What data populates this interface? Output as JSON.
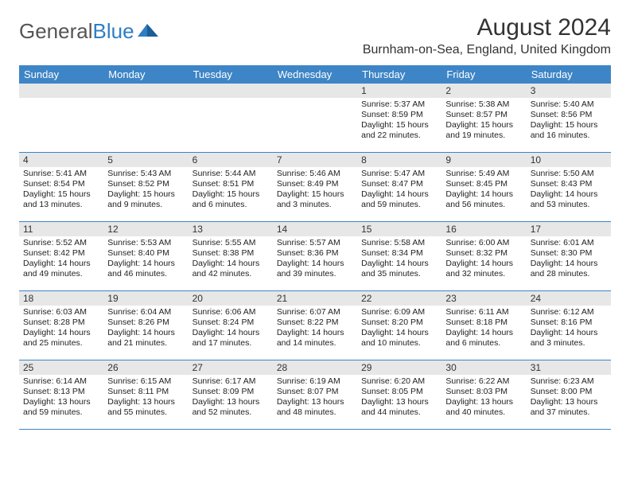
{
  "brand": {
    "word1": "General",
    "word2": "Blue"
  },
  "title": "August 2024",
  "location": "Burnham-on-Sea, England, United Kingdom",
  "colors": {
    "header_blue": "#3d85c6",
    "daynum_bg": "#e7e7e7",
    "row_border": "#3d85c6",
    "logo_gray": "#555555",
    "logo_blue": "#2f7ec2",
    "text": "#222222"
  },
  "dayNames": [
    "Sunday",
    "Monday",
    "Tuesday",
    "Wednesday",
    "Thursday",
    "Friday",
    "Saturday"
  ],
  "grid": {
    "firstDayIndex": 4,
    "rows": 5,
    "cols": 7
  },
  "days": [
    {
      "n": 1,
      "sunrise": "5:37 AM",
      "sunset": "8:59 PM",
      "daylight": "15 hours and 22 minutes."
    },
    {
      "n": 2,
      "sunrise": "5:38 AM",
      "sunset": "8:57 PM",
      "daylight": "15 hours and 19 minutes."
    },
    {
      "n": 3,
      "sunrise": "5:40 AM",
      "sunset": "8:56 PM",
      "daylight": "15 hours and 16 minutes."
    },
    {
      "n": 4,
      "sunrise": "5:41 AM",
      "sunset": "8:54 PM",
      "daylight": "15 hours and 13 minutes."
    },
    {
      "n": 5,
      "sunrise": "5:43 AM",
      "sunset": "8:52 PM",
      "daylight": "15 hours and 9 minutes."
    },
    {
      "n": 6,
      "sunrise": "5:44 AM",
      "sunset": "8:51 PM",
      "daylight": "15 hours and 6 minutes."
    },
    {
      "n": 7,
      "sunrise": "5:46 AM",
      "sunset": "8:49 PM",
      "daylight": "15 hours and 3 minutes."
    },
    {
      "n": 8,
      "sunrise": "5:47 AM",
      "sunset": "8:47 PM",
      "daylight": "14 hours and 59 minutes."
    },
    {
      "n": 9,
      "sunrise": "5:49 AM",
      "sunset": "8:45 PM",
      "daylight": "14 hours and 56 minutes."
    },
    {
      "n": 10,
      "sunrise": "5:50 AM",
      "sunset": "8:43 PM",
      "daylight": "14 hours and 53 minutes."
    },
    {
      "n": 11,
      "sunrise": "5:52 AM",
      "sunset": "8:42 PM",
      "daylight": "14 hours and 49 minutes."
    },
    {
      "n": 12,
      "sunrise": "5:53 AM",
      "sunset": "8:40 PM",
      "daylight": "14 hours and 46 minutes."
    },
    {
      "n": 13,
      "sunrise": "5:55 AM",
      "sunset": "8:38 PM",
      "daylight": "14 hours and 42 minutes."
    },
    {
      "n": 14,
      "sunrise": "5:57 AM",
      "sunset": "8:36 PM",
      "daylight": "14 hours and 39 minutes."
    },
    {
      "n": 15,
      "sunrise": "5:58 AM",
      "sunset": "8:34 PM",
      "daylight": "14 hours and 35 minutes."
    },
    {
      "n": 16,
      "sunrise": "6:00 AM",
      "sunset": "8:32 PM",
      "daylight": "14 hours and 32 minutes."
    },
    {
      "n": 17,
      "sunrise": "6:01 AM",
      "sunset": "8:30 PM",
      "daylight": "14 hours and 28 minutes."
    },
    {
      "n": 18,
      "sunrise": "6:03 AM",
      "sunset": "8:28 PM",
      "daylight": "14 hours and 25 minutes."
    },
    {
      "n": 19,
      "sunrise": "6:04 AM",
      "sunset": "8:26 PM",
      "daylight": "14 hours and 21 minutes."
    },
    {
      "n": 20,
      "sunrise": "6:06 AM",
      "sunset": "8:24 PM",
      "daylight": "14 hours and 17 minutes."
    },
    {
      "n": 21,
      "sunrise": "6:07 AM",
      "sunset": "8:22 PM",
      "daylight": "14 hours and 14 minutes."
    },
    {
      "n": 22,
      "sunrise": "6:09 AM",
      "sunset": "8:20 PM",
      "daylight": "14 hours and 10 minutes."
    },
    {
      "n": 23,
      "sunrise": "6:11 AM",
      "sunset": "8:18 PM",
      "daylight": "14 hours and 6 minutes."
    },
    {
      "n": 24,
      "sunrise": "6:12 AM",
      "sunset": "8:16 PM",
      "daylight": "14 hours and 3 minutes."
    },
    {
      "n": 25,
      "sunrise": "6:14 AM",
      "sunset": "8:13 PM",
      "daylight": "13 hours and 59 minutes."
    },
    {
      "n": 26,
      "sunrise": "6:15 AM",
      "sunset": "8:11 PM",
      "daylight": "13 hours and 55 minutes."
    },
    {
      "n": 27,
      "sunrise": "6:17 AM",
      "sunset": "8:09 PM",
      "daylight": "13 hours and 52 minutes."
    },
    {
      "n": 28,
      "sunrise": "6:19 AM",
      "sunset": "8:07 PM",
      "daylight": "13 hours and 48 minutes."
    },
    {
      "n": 29,
      "sunrise": "6:20 AM",
      "sunset": "8:05 PM",
      "daylight": "13 hours and 44 minutes."
    },
    {
      "n": 30,
      "sunrise": "6:22 AM",
      "sunset": "8:03 PM",
      "daylight": "13 hours and 40 minutes."
    },
    {
      "n": 31,
      "sunrise": "6:23 AM",
      "sunset": "8:00 PM",
      "daylight": "13 hours and 37 minutes."
    }
  ],
  "labels": {
    "sunrise": "Sunrise:",
    "sunset": "Sunset:",
    "daylight": "Daylight:"
  }
}
